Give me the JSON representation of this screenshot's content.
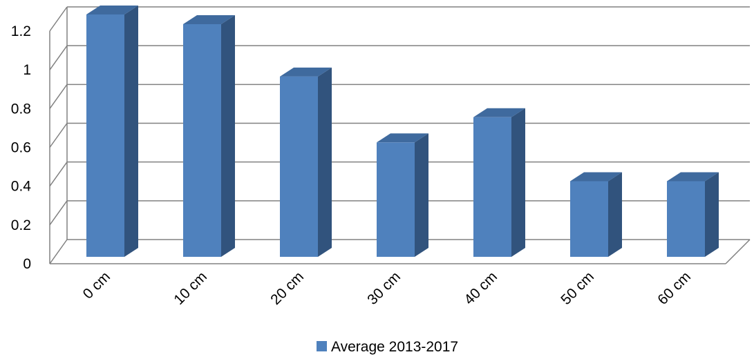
{
  "chart_data": {
    "type": "bar",
    "categories": [
      "0 cm",
      "10 cm",
      "20 cm",
      "30 cm",
      "40 cm",
      "50 cm",
      "60 cm"
    ],
    "series": [
      {
        "name": "Average 2013-2017",
        "values": [
          1.25,
          1.2,
          0.93,
          0.59,
          0.72,
          0.39,
          0.39
        ],
        "color": "#4F81BD"
      }
    ],
    "ylim": [
      0,
      1.2
    ],
    "yticks": [
      0,
      0.2,
      0.4,
      0.6,
      0.8,
      1,
      1.2
    ],
    "ytick_labels": [
      "0",
      "0.2",
      "0.4",
      "0.6",
      "0.8",
      "1",
      "1.2"
    ],
    "grid": true,
    "legend": "bottom",
    "style": "3d",
    "colors": {
      "bar_front": "#4F81BD",
      "bar_side": "#31537D",
      "bar_top": "#3F6A9E",
      "grid": "#808080"
    }
  }
}
